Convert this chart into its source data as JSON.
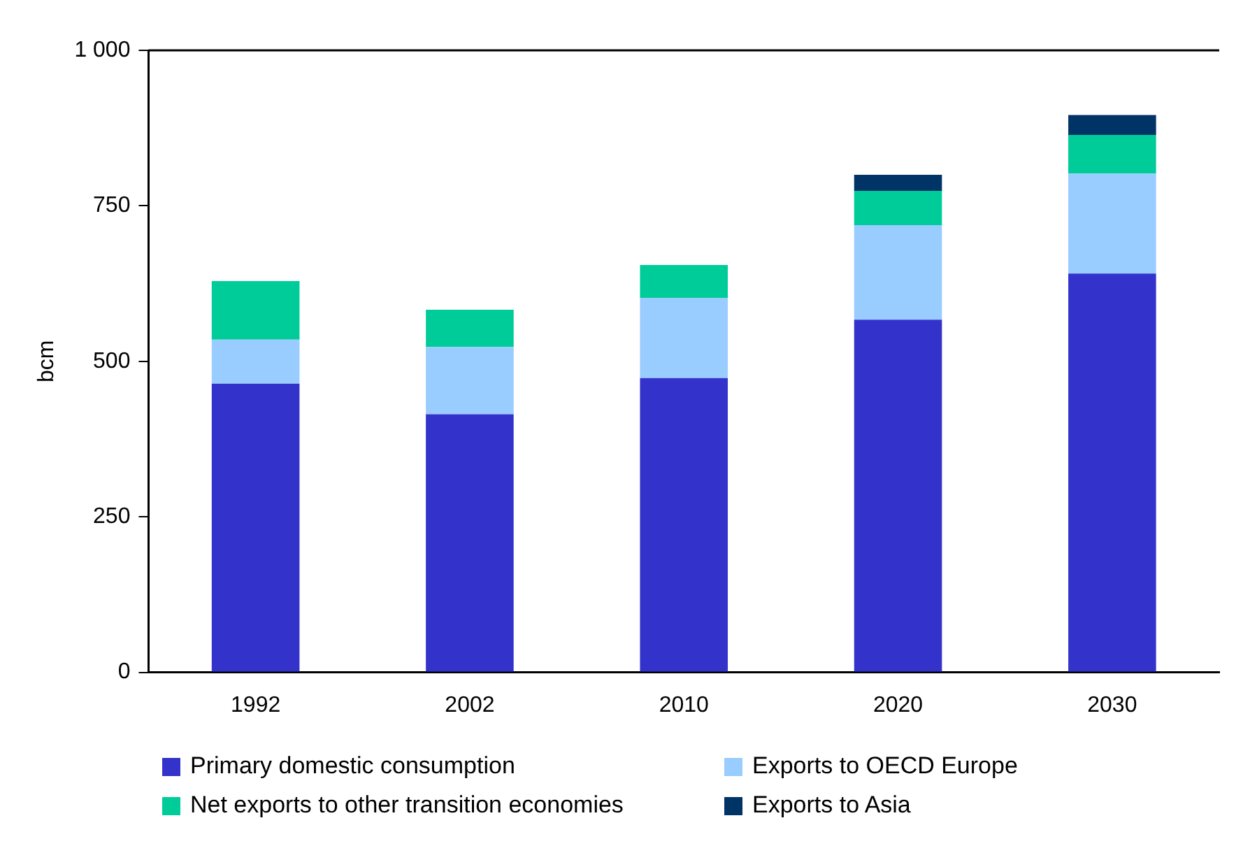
{
  "chart_data": {
    "type": "bar",
    "stacked": true,
    "ylabel": "bcm",
    "categories": [
      "1992",
      "2002",
      "2010",
      "2020",
      "2030"
    ],
    "series": [
      {
        "name": "Primary domestic consumption",
        "color": "#3333cc",
        "values": [
          464,
          415,
          473,
          567,
          641
        ]
      },
      {
        "name": "Exports to OECD Europe",
        "color": "#99ccff",
        "values": [
          71,
          108,
          129,
          152,
          161
        ]
      },
      {
        "name": "Net exports to other transition economies",
        "color": "#00cc99",
        "values": [
          94,
          60,
          53,
          55,
          62
        ]
      },
      {
        "name": "Exports to Asia",
        "color": "#003366",
        "values": [
          null,
          null,
          null,
          26,
          32
        ]
      }
    ],
    "ylim": [
      0,
      1000
    ],
    "yticks": [
      0,
      250,
      500,
      750,
      {
        "value": 1000,
        "label": "1 000"
      }
    ],
    "grid": false,
    "legend": "bottom"
  }
}
